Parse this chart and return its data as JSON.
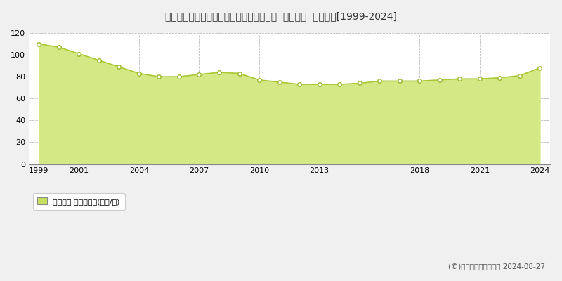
{
  "title": "大阪府大阪市城東区野江２丁目３９番２外  地価公示  地価推移[1999-2024]",
  "years": [
    1999,
    2000,
    2001,
    2002,
    2003,
    2004,
    2005,
    2006,
    2007,
    2008,
    2009,
    2010,
    2011,
    2012,
    2013,
    2014,
    2015,
    2016,
    2017,
    2018,
    2019,
    2020,
    2021,
    2022,
    2023,
    2024
  ],
  "values": [
    110,
    107,
    101,
    95,
    89,
    83,
    80,
    80,
    82,
    84,
    83,
    77,
    75,
    73,
    73,
    73,
    74,
    76,
    76,
    76,
    77,
    78,
    78,
    79,
    81,
    88
  ],
  "fill_color": "#d4e885",
  "line_color": "#a8c832",
  "marker_facecolor": "#ffffff",
  "marker_edgecolor": "#9ab828",
  "background_color": "#f0f0f0",
  "plot_bg_color": "#ffffff",
  "grid_color": "#bbbbbb",
  "ylim": [
    0,
    120
  ],
  "yticks": [
    0,
    20,
    40,
    60,
    80,
    100,
    120
  ],
  "xticks": [
    1999,
    2001,
    2004,
    2007,
    2010,
    2013,
    2018,
    2021,
    2024
  ],
  "legend_label": "地価公示 平均坊単価(万円/坊)",
  "copyright_text": "(©)土地価格ドットコム 2024-08-27",
  "legend_marker_color": "#c8e060"
}
